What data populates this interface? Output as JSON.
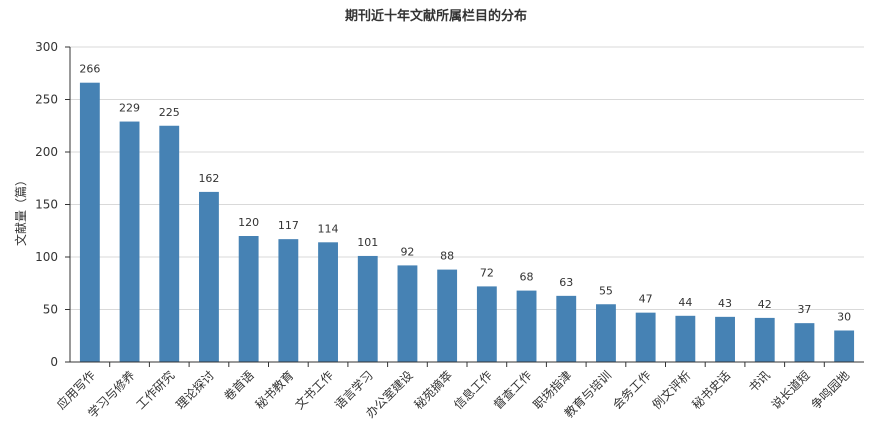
{
  "chart_data": {
    "type": "bar",
    "title": "期刊近十年文献所属栏目的分布",
    "ylabel": "文献量（篇）",
    "xlabel": "",
    "ylim": [
      0,
      300
    ],
    "yticks": [
      0,
      50,
      100,
      150,
      200,
      250,
      300
    ],
    "categories": [
      "应用写作",
      "学习与修养",
      "工作研究",
      "理论探讨",
      "卷首语",
      "秘书教育",
      "文书工作",
      "语言学习",
      "办公室建设",
      "秘苑摘萃",
      "信息工作",
      "督查工作",
      "职场指津",
      "教育与培训",
      "会务工作",
      "例文评析",
      "秘书史话",
      "书讯",
      "说长道短",
      "争鸣园地"
    ],
    "values": [
      266,
      229,
      225,
      162,
      120,
      117,
      114,
      101,
      92,
      88,
      72,
      68,
      63,
      55,
      47,
      44,
      43,
      42,
      37,
      30
    ],
    "bar_color": "#4682b4",
    "grid": true,
    "legend": "none"
  }
}
